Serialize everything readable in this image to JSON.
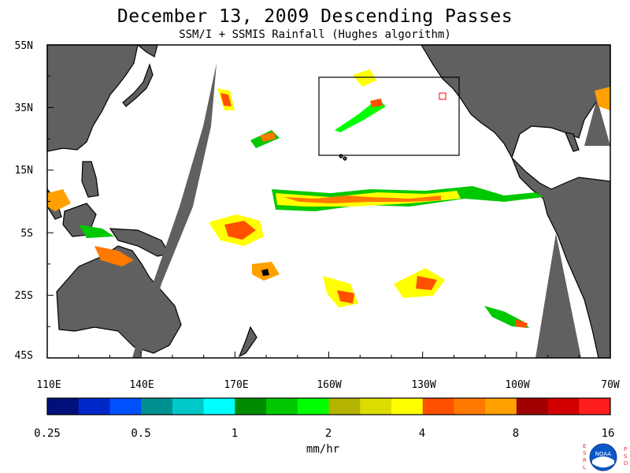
{
  "title": "December 13, 2009  Descending Passes",
  "subtitle": "SSM/I + SSMIS Rainfall (Hughes algorithm)",
  "lat_labels": [
    "55N",
    "35N",
    "15N",
    "5S",
    "25S",
    "45S"
  ],
  "lon_labels": [
    "110E",
    "140E",
    "170E",
    "160W",
    "130W",
    "100W",
    "70W"
  ],
  "colorbar": {
    "ticks": [
      "0.25",
      "0.5",
      "1",
      "2",
      "4",
      "8",
      "16"
    ],
    "unit": "mm/hr",
    "colors": [
      "#00107a",
      "#0028c8",
      "#0050ff",
      "#009090",
      "#00c8c8",
      "#00ffff",
      "#008c00",
      "#00c800",
      "#00ff00",
      "#b4b400",
      "#dcdc00",
      "#ffff00",
      "#ff5000",
      "#ff7800",
      "#ffa000",
      "#a00000",
      "#d20000",
      "#ff1e1e"
    ]
  },
  "colors": {
    "land": "#606060",
    "no_data_swath": "#606060",
    "background": "#ffffff"
  },
  "logo": {
    "name": "NOAA",
    "left_letters": "ESRL",
    "right_letters": "PSD"
  }
}
